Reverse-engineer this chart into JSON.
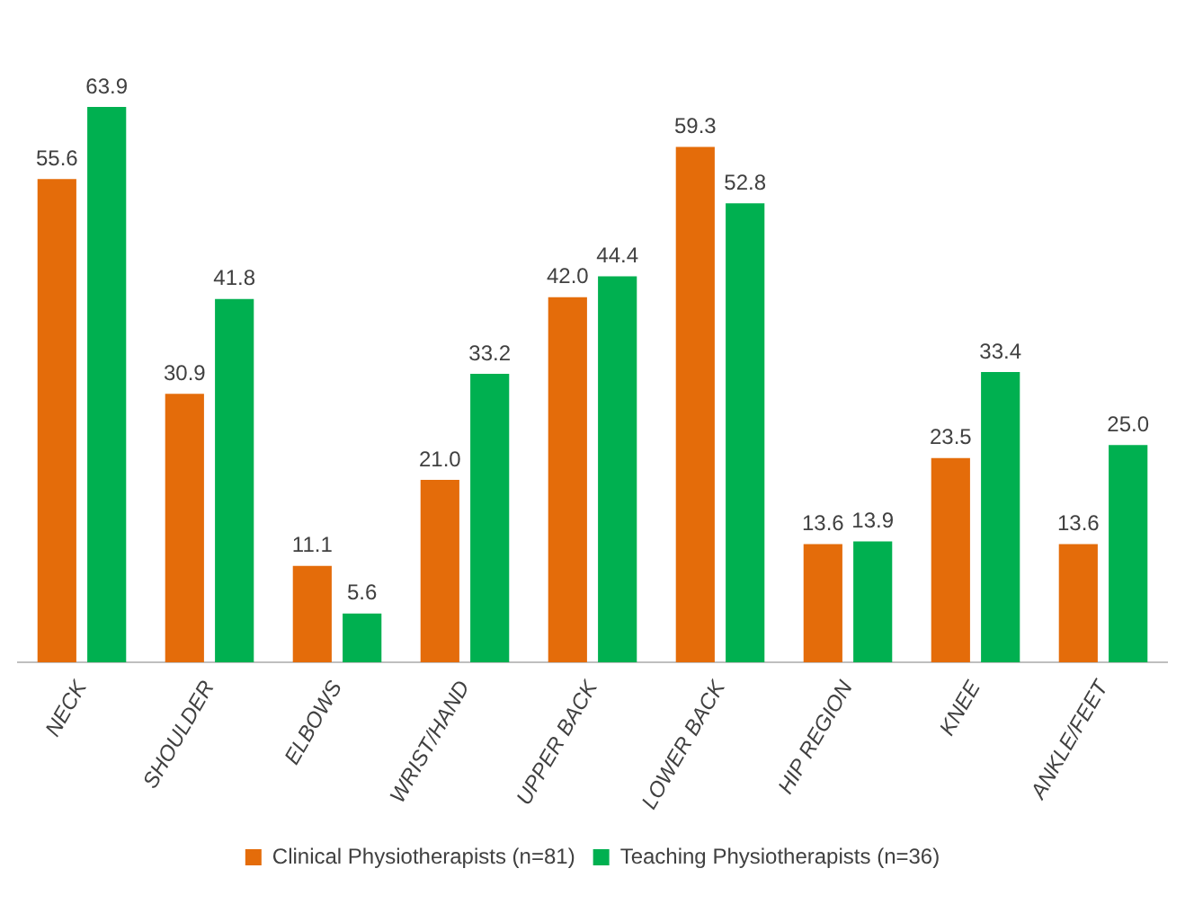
{
  "chart_data": {
    "type": "bar",
    "categories": [
      "NECK",
      "SHOULDER",
      "ELBOWS",
      "WRIST/HAND",
      "UPPER BACK",
      "LOWER BACK",
      "HIP REGION",
      "KNEE",
      "ANKLE/FEET"
    ],
    "series": [
      {
        "name": "Clinical Physiotherapists (n=81)",
        "color": "#e46c0a",
        "values": [
          55.6,
          30.9,
          11.1,
          21.0,
          42.0,
          59.3,
          13.6,
          23.5,
          13.6
        ],
        "value_labels": [
          "55.6",
          "30.9",
          "11.1",
          "21.0",
          "42.0",
          "59.3",
          "13.6",
          "23.5",
          "13.6"
        ]
      },
      {
        "name": "Teaching Physiotherapists (n=36)",
        "color": "#00b050",
        "values": [
          63.9,
          41.8,
          5.6,
          33.2,
          44.4,
          52.8,
          13.9,
          33.4,
          25.0
        ],
        "value_labels": [
          "63.9",
          "41.8",
          "5.6",
          "33.2",
          "44.4",
          "52.8",
          "13.9",
          "33.4",
          "25.0"
        ]
      }
    ],
    "legend": "bottom",
    "grid": false
  }
}
